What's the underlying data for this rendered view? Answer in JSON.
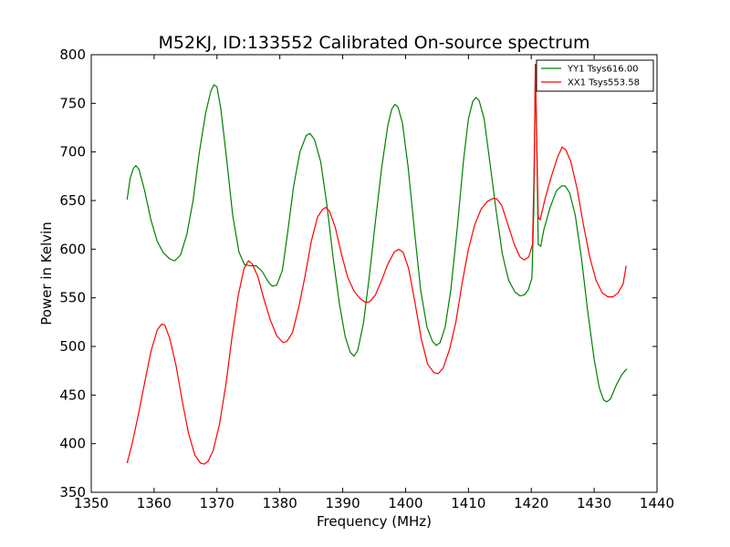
{
  "chart_data": {
    "type": "line",
    "title": "M52KJ, ID:133552 Calibrated On-source spectrum",
    "xlabel": "Frequency (MHz)",
    "ylabel": "Power in Kelvin",
    "xlim": [
      1350,
      1440
    ],
    "ylim": [
      350,
      800
    ],
    "xticks": [
      1350,
      1360,
      1370,
      1380,
      1390,
      1400,
      1410,
      1420,
      1430,
      1440
    ],
    "yticks": [
      350,
      400,
      450,
      500,
      550,
      600,
      650,
      700,
      750,
      800
    ],
    "grid": false,
    "legend_position": "top-right",
    "series": [
      {
        "name": "YY1 Tsys616.00",
        "color": "#008000",
        "points": [
          [
            1355.7,
            651
          ],
          [
            1356.2,
            673
          ],
          [
            1356.7,
            683
          ],
          [
            1357.1,
            686
          ],
          [
            1357.6,
            682
          ],
          [
            1358.5,
            660
          ],
          [
            1359.5,
            630
          ],
          [
            1360.5,
            608
          ],
          [
            1361.5,
            596
          ],
          [
            1362.5,
            590
          ],
          [
            1363.3,
            588
          ],
          [
            1364.2,
            594
          ],
          [
            1365.2,
            615
          ],
          [
            1366.2,
            650
          ],
          [
            1367.2,
            700
          ],
          [
            1368.2,
            740
          ],
          [
            1369.0,
            762
          ],
          [
            1369.5,
            769
          ],
          [
            1370.0,
            767
          ],
          [
            1370.6,
            745
          ],
          [
            1371.5,
            695
          ],
          [
            1372.5,
            635
          ],
          [
            1373.5,
            597
          ],
          [
            1374.4,
            584
          ],
          [
            1375.3,
            583
          ],
          [
            1376.2,
            583
          ],
          [
            1377.2,
            577
          ],
          [
            1378.2,
            566
          ],
          [
            1378.8,
            562
          ],
          [
            1379.5,
            563
          ],
          [
            1380.4,
            578
          ],
          [
            1381.2,
            615
          ],
          [
            1382.2,
            665
          ],
          [
            1383.2,
            700
          ],
          [
            1384.2,
            717
          ],
          [
            1384.8,
            719
          ],
          [
            1385.5,
            713
          ],
          [
            1386.5,
            690
          ],
          [
            1387.5,
            645
          ],
          [
            1388.5,
            590
          ],
          [
            1389.5,
            543
          ],
          [
            1390.4,
            510
          ],
          [
            1391.2,
            494
          ],
          [
            1391.8,
            490
          ],
          [
            1392.4,
            496
          ],
          [
            1393.3,
            524
          ],
          [
            1394.2,
            570
          ],
          [
            1395.2,
            628
          ],
          [
            1396.2,
            684
          ],
          [
            1397.2,
            728
          ],
          [
            1397.8,
            744
          ],
          [
            1398.3,
            749
          ],
          [
            1398.8,
            746
          ],
          [
            1399.5,
            730
          ],
          [
            1400.4,
            685
          ],
          [
            1401.4,
            620
          ],
          [
            1402.4,
            558
          ],
          [
            1403.4,
            520
          ],
          [
            1404.3,
            505
          ],
          [
            1404.9,
            501
          ],
          [
            1405.5,
            504
          ],
          [
            1406.3,
            520
          ],
          [
            1407.2,
            558
          ],
          [
            1408.2,
            620
          ],
          [
            1409.2,
            690
          ],
          [
            1410.0,
            734
          ],
          [
            1410.7,
            752
          ],
          [
            1411.2,
            756
          ],
          [
            1411.7,
            753
          ],
          [
            1412.5,
            734
          ],
          [
            1413.4,
            690
          ],
          [
            1414.4,
            640
          ],
          [
            1415.4,
            595
          ],
          [
            1416.4,
            568
          ],
          [
            1417.4,
            556
          ],
          [
            1418.2,
            552
          ],
          [
            1418.9,
            553
          ],
          [
            1419.5,
            558
          ],
          [
            1420.1,
            570
          ],
          [
            1420.4,
            640
          ],
          [
            1420.65,
            790
          ],
          [
            1420.9,
            700
          ],
          [
            1421.1,
            605
          ],
          [
            1421.5,
            603
          ],
          [
            1422.0,
            620
          ],
          [
            1423.0,
            643
          ],
          [
            1424.0,
            660
          ],
          [
            1424.8,
            665
          ],
          [
            1425.4,
            665
          ],
          [
            1426.1,
            658
          ],
          [
            1427.0,
            635
          ],
          [
            1428.0,
            590
          ],
          [
            1429.0,
            535
          ],
          [
            1430.0,
            487
          ],
          [
            1430.8,
            458
          ],
          [
            1431.5,
            445
          ],
          [
            1432.0,
            443
          ],
          [
            1432.6,
            446
          ],
          [
            1433.5,
            460
          ],
          [
            1434.4,
            471
          ],
          [
            1435.2,
            477
          ]
        ]
      },
      {
        "name": "XX1 Tsys553.58",
        "color": "#ff0000",
        "points": [
          [
            1355.7,
            380
          ],
          [
            1356.5,
            400
          ],
          [
            1357.5,
            430
          ],
          [
            1358.5,
            463
          ],
          [
            1359.5,
            495
          ],
          [
            1360.5,
            517
          ],
          [
            1361.2,
            523
          ],
          [
            1361.7,
            522
          ],
          [
            1362.5,
            508
          ],
          [
            1363.5,
            480
          ],
          [
            1364.5,
            443
          ],
          [
            1365.5,
            410
          ],
          [
            1366.5,
            388
          ],
          [
            1367.4,
            380
          ],
          [
            1368.0,
            379
          ],
          [
            1368.6,
            382
          ],
          [
            1369.4,
            393
          ],
          [
            1370.4,
            420
          ],
          [
            1371.4,
            460
          ],
          [
            1372.4,
            510
          ],
          [
            1373.4,
            553
          ],
          [
            1374.3,
            580
          ],
          [
            1375.0,
            588
          ],
          [
            1375.6,
            585
          ],
          [
            1376.5,
            572
          ],
          [
            1377.5,
            548
          ],
          [
            1378.5,
            527
          ],
          [
            1379.5,
            511
          ],
          [
            1380.5,
            504
          ],
          [
            1381.1,
            505
          ],
          [
            1382.0,
            514
          ],
          [
            1383.0,
            540
          ],
          [
            1384.0,
            572
          ],
          [
            1385.0,
            608
          ],
          [
            1386.0,
            633
          ],
          [
            1386.8,
            641
          ],
          [
            1387.3,
            643
          ],
          [
            1387.9,
            639
          ],
          [
            1388.8,
            623
          ],
          [
            1389.8,
            595
          ],
          [
            1390.8,
            571
          ],
          [
            1391.8,
            557
          ],
          [
            1392.8,
            549
          ],
          [
            1393.7,
            545
          ],
          [
            1394.3,
            546
          ],
          [
            1395.2,
            553
          ],
          [
            1396.2,
            568
          ],
          [
            1397.2,
            585
          ],
          [
            1398.2,
            597
          ],
          [
            1398.9,
            600
          ],
          [
            1399.6,
            597
          ],
          [
            1400.5,
            580
          ],
          [
            1401.5,
            545
          ],
          [
            1402.5,
            508
          ],
          [
            1403.5,
            482
          ],
          [
            1404.5,
            473
          ],
          [
            1405.2,
            472
          ],
          [
            1406.0,
            478
          ],
          [
            1407.0,
            497
          ],
          [
            1408.0,
            525
          ],
          [
            1409.0,
            565
          ],
          [
            1410.0,
            600
          ],
          [
            1411.0,
            625
          ],
          [
            1412.0,
            641
          ],
          [
            1413.0,
            649
          ],
          [
            1413.8,
            652
          ],
          [
            1414.5,
            652
          ],
          [
            1415.3,
            645
          ],
          [
            1416.3,
            625
          ],
          [
            1417.3,
            605
          ],
          [
            1418.2,
            592
          ],
          [
            1418.9,
            589
          ],
          [
            1419.6,
            592
          ],
          [
            1420.2,
            605
          ],
          [
            1420.45,
            680
          ],
          [
            1420.65,
            790
          ],
          [
            1420.9,
            700
          ],
          [
            1421.1,
            633
          ],
          [
            1421.4,
            630
          ],
          [
            1422.2,
            652
          ],
          [
            1423.2,
            675
          ],
          [
            1424.2,
            695
          ],
          [
            1424.9,
            705
          ],
          [
            1425.5,
            702
          ],
          [
            1426.3,
            690
          ],
          [
            1427.3,
            662
          ],
          [
            1428.3,
            625
          ],
          [
            1429.3,
            592
          ],
          [
            1430.3,
            568
          ],
          [
            1431.3,
            555
          ],
          [
            1432.2,
            551
          ],
          [
            1433.0,
            551
          ],
          [
            1433.8,
            555
          ],
          [
            1434.6,
            564
          ],
          [
            1435.1,
            583
          ]
        ]
      }
    ]
  }
}
